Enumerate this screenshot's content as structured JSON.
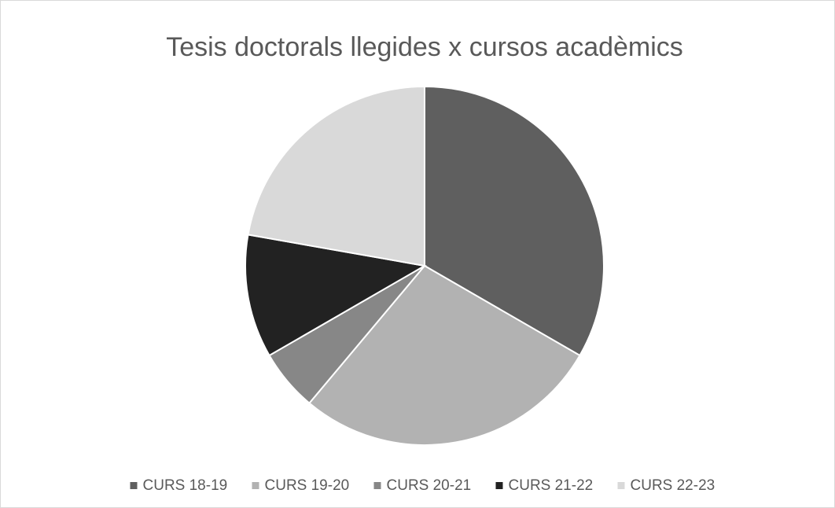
{
  "chart_data": {
    "type": "pie",
    "title": "Tesis doctorals llegides x cursos acadèmics",
    "categories": [
      "CURS 18-19",
      "CURS 19-20",
      "CURS 20-21",
      "CURS 21-22",
      "CURS 22-23"
    ],
    "values": [
      6,
      5,
      1,
      2,
      4
    ],
    "colors": [
      "#5f5f5f",
      "#b2b2b2",
      "#878787",
      "#222222",
      "#d9d9d9"
    ],
    "legend": "bottom"
  }
}
